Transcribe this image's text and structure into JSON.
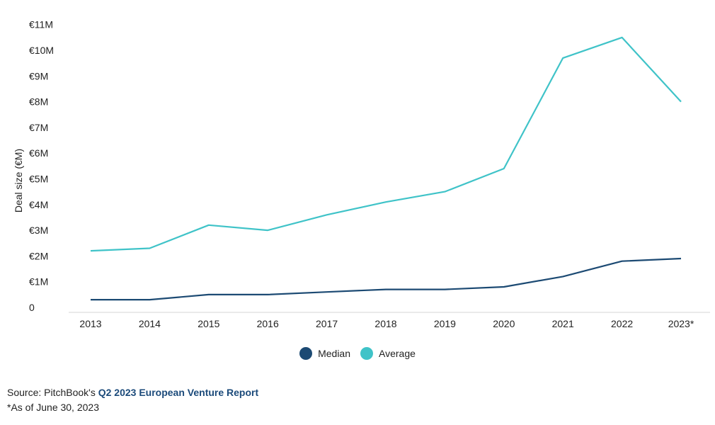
{
  "chart_data": {
    "type": "line",
    "ylabel": "Deal size (€M)",
    "categories": [
      "2013",
      "2014",
      "2015",
      "2016",
      "2017",
      "2018",
      "2019",
      "2020",
      "2021",
      "2022",
      "2023*"
    ],
    "y_ticks": [
      "0",
      "€1M",
      "€2M",
      "€3M",
      "€4M",
      "€5M",
      "€6M",
      "€7M",
      "€8M",
      "€9M",
      "€10M",
      "€11M"
    ],
    "ylim": [
      0,
      11
    ],
    "grid": false,
    "legend_position": "bottom",
    "series": [
      {
        "name": "Median",
        "color": "#1c4a73",
        "values": [
          0.3,
          0.3,
          0.5,
          0.5,
          0.6,
          0.7,
          0.7,
          0.8,
          1.2,
          1.8,
          1.9
        ]
      },
      {
        "name": "Average",
        "color": "#3fc3c8",
        "values": [
          2.2,
          2.3,
          3.2,
          3.0,
          3.6,
          4.1,
          4.5,
          5.4,
          9.7,
          10.5,
          8.0
        ]
      }
    ]
  },
  "legend": {
    "median_label": "Median",
    "average_label": "Average"
  },
  "source": {
    "prefix": "Source: PitchBook's ",
    "link_text": "Q2 2023 European Venture Report"
  },
  "note": "*As of June 30, 2023"
}
